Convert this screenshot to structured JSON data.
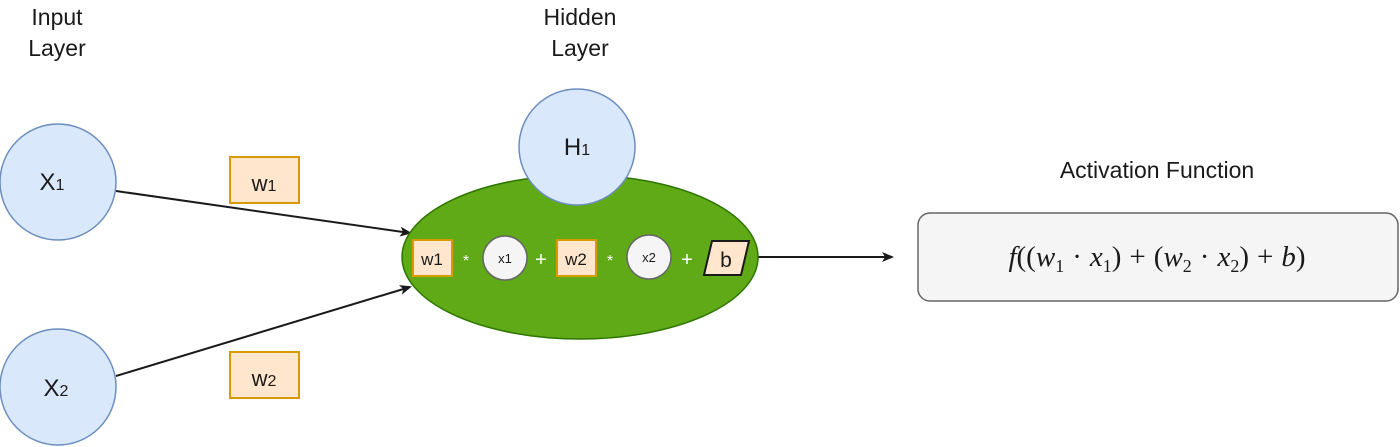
{
  "input_layer": {
    "title_line1": "Input",
    "title_line2": "Layer",
    "nodes": [
      {
        "label": "X",
        "subscript": "1"
      },
      {
        "label": "X",
        "subscript": "2"
      }
    ]
  },
  "weights": [
    {
      "label": "w",
      "subscript": "1"
    },
    {
      "label": "w",
      "subscript": "2"
    }
  ],
  "hidden_layer": {
    "title_line1": "Hidden",
    "title_line2": "Layer",
    "node": {
      "label": "H",
      "subscript": "1"
    },
    "computation": {
      "w1": "w1",
      "op_mul1": "*",
      "x1": "x1",
      "op_add1": "+",
      "w2": "w2",
      "op_mul2": "*",
      "x2": "x2",
      "op_add2": "+",
      "bias": "b"
    }
  },
  "activation": {
    "title": "Activation Function",
    "formula": {
      "f": "f",
      "open": "((",
      "w1": "w",
      "w1_sub": "1",
      "dot1": "·",
      "x1": "x",
      "x1_sub": "1",
      "mid_close": ")",
      "plus1": "+",
      "mid_open": "(",
      "w2": "w",
      "w2_sub": "2",
      "dot2": "·",
      "x2": "x",
      "x2_sub": "2",
      "close2": ")",
      "plus2": "+",
      "b": "b",
      "close": ")"
    }
  },
  "colors": {
    "node_fill": "#dae8fc",
    "node_stroke": "#6c8ebf",
    "weight_fill": "#ffe6cc",
    "weight_stroke": "#d79b00",
    "ellipse_fill": "#60a917",
    "ellipse_stroke": "#2d7600",
    "box_fill": "#f5f5f5",
    "box_stroke": "#666666",
    "arrow": "#1a1a1a"
  }
}
